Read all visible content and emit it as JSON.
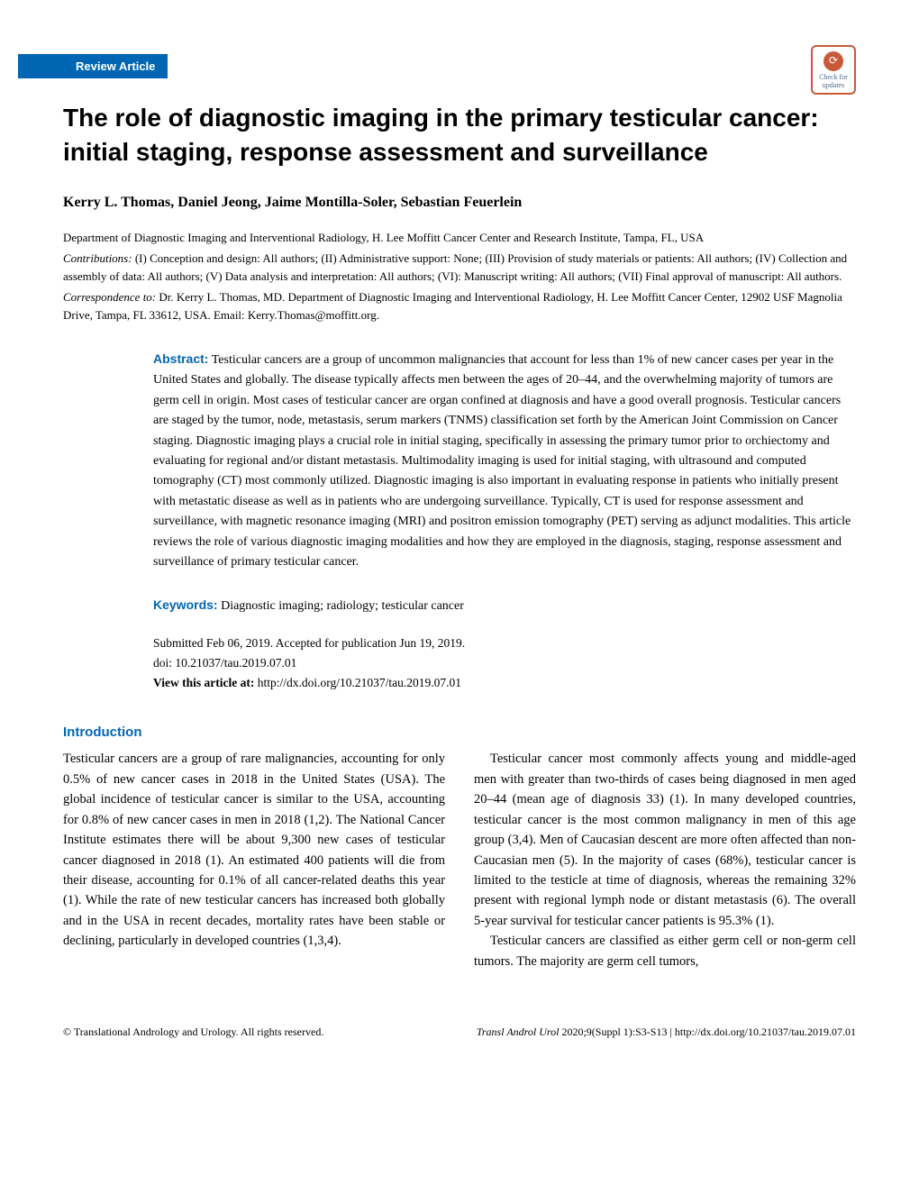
{
  "badge": {
    "text1": "Check for",
    "text2": "updates"
  },
  "review_tag": "Review Article",
  "title": "The role of diagnostic imaging in the primary testicular cancer: initial staging, response assessment and surveillance",
  "authors": "Kerry L. Thomas, Daniel Jeong, Jaime Montilla-Soler, Sebastian Feuerlein",
  "affiliation": "Department of Diagnostic Imaging and Interventional Radiology, H. Lee Moffitt Cancer Center and Research Institute, Tampa, FL, USA",
  "contributions_label": "Contributions:",
  "contributions_text": " (I) Conception and design: All authors; (II) Administrative support: None; (III) Provision of study materials or patients: All authors; (IV) Collection and assembly of data: All authors; (V) Data analysis and interpretation: All authors; (VI): Manuscript writing: All authors; (VII) Final approval of manuscript: All authors.",
  "correspondence_label": "Correspondence to:",
  "correspondence_text": " Dr. Kerry L. Thomas, MD. Department of Diagnostic Imaging and Interventional Radiology, H. Lee Moffitt Cancer Center, 12902 USF Magnolia Drive, Tampa, FL 33612, USA. Email: Kerry.Thomas@moffitt.org.",
  "abstract_label": "Abstract:",
  "abstract_text": " Testicular cancers are a group of uncommon malignancies that account for less than 1% of new cancer cases per year in the United States and globally. The disease typically affects men between the ages of 20–44, and the overwhelming majority of tumors are germ cell in origin. Most cases of testicular cancer are organ confined at diagnosis and have a good overall prognosis. Testicular cancers are staged by the tumor, node, metastasis, serum markers (TNMS) classification set forth by the American Joint Commission on Cancer staging. Diagnostic imaging plays a crucial role in initial staging, specifically in assessing the primary tumor prior to orchiectomy and evaluating for regional and/or distant metastasis. Multimodality imaging is used for initial staging, with ultrasound and computed tomography (CT) most commonly utilized. Diagnostic imaging is also important in evaluating response in patients who initially present with metastatic disease as well as in patients who are undergoing surveillance. Typically, CT is used for response assessment and surveillance, with magnetic resonance imaging (MRI) and positron emission tomography (PET) serving as adjunct modalities. This article reviews the role of various diagnostic imaging modalities and how they are employed in the diagnosis, staging, response assessment and surveillance of primary testicular cancer.",
  "keywords_label": "Keywords:",
  "keywords_text": " Diagnostic imaging; radiology; testicular cancer",
  "submission_line": "Submitted Feb 06, 2019. Accepted for publication Jun 19, 2019.",
  "doi_line": "doi: 10.21037/tau.2019.07.01",
  "view_label": "View this article at:",
  "view_url": " http://dx.doi.org/10.21037/tau.2019.07.01",
  "section_intro": "Introduction",
  "para1": "Testicular cancers are a group of rare malignancies, accounting for only 0.5% of new cancer cases in 2018 in the United States (USA). The global incidence of testicular cancer is similar to the USA, accounting for 0.8% of new cancer cases in men in 2018 (1,2). The National Cancer Institute estimates there will be about 9,300 new cases of testicular cancer diagnosed in 2018 (1). An estimated 400 patients will die from their disease, accounting for 0.1% of all cancer-related deaths this year (1). While the rate of new testicular cancers has increased both globally and in the USA in recent decades, mortality rates have been stable or declining, particularly in developed countries (1,3,4).",
  "para2": "Testicular cancer most commonly affects young and middle-aged men with greater than two-thirds of cases being diagnosed in men aged 20–44 (mean age of diagnosis 33) (1). In many developed countries, testicular cancer is the most common malignancy in men of this age group (3,4). Men of Caucasian descent are more often affected than non-Caucasian men (5). In the majority of cases (68%), testicular cancer is limited to the testicle at time of diagnosis, whereas the remaining 32% present with regional lymph node or distant metastasis (6). The overall 5-year survival for testicular cancer patients is 95.3% (1).",
  "para3": "Testicular cancers are classified as either germ cell or non-germ cell tumors. The majority are germ cell tumors,",
  "footer_left": "© Translational Andrology and Urology. All rights reserved.",
  "footer_right_italic": "Transl Androl Urol",
  "footer_right_normal": " 2020;9(Suppl 1):S3-S13 | http://dx.doi.org/10.21037/tau.2019.07.01",
  "colors": {
    "brand_blue": "#0066b3",
    "badge_border": "#c85a3a",
    "text": "#000000",
    "background": "#ffffff"
  },
  "typography": {
    "title_fontsize": 28,
    "authors_fontsize": 16,
    "body_fontsize": 14.5,
    "footer_fontsize": 12,
    "abstract_fontsize": 14
  }
}
